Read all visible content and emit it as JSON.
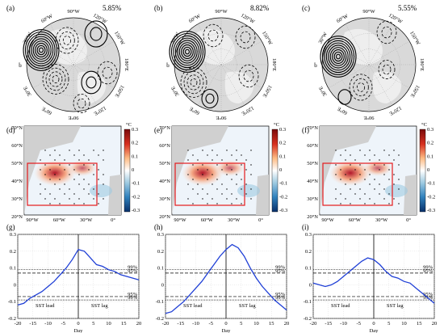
{
  "panels_top": [
    {
      "label": "(a)",
      "percent": "5.85%",
      "lon_labels": [
        "90°W",
        "120°W",
        "150°W",
        "180°E",
        "150°E",
        "120°E",
        "90°E",
        "60°E",
        "30°E",
        "0°",
        "30°W",
        "60°W"
      ]
    },
    {
      "label": "(b)",
      "percent": "8.82%",
      "lon_labels": [
        "90°W",
        "120°W",
        "150°W",
        "180°E",
        "150°E",
        "120°E",
        "90°E",
        "60°E",
        "30°E",
        "0°",
        "30°W",
        "60°W"
      ]
    },
    {
      "label": "(c)",
      "percent": "5.55%",
      "lon_labels": [
        "90°W",
        "120°W",
        "150°W",
        "180°E",
        "150°E",
        "120°E",
        "90°E",
        "60°E",
        "30°E",
        "0°",
        "30°W",
        "60°W"
      ]
    }
  ],
  "panels_mid": [
    {
      "label": "(d)"
    },
    {
      "label": "(e)"
    },
    {
      "label": "(f)"
    }
  ],
  "map_axes": {
    "lat_labels": [
      "70°N",
      "60°N",
      "50°N",
      "40°N",
      "30°N",
      "20°N"
    ],
    "lon_labels": [
      "90°W",
      "60°W",
      "30°W",
      "0°"
    ]
  },
  "colorbar": {
    "unit": "°C",
    "ticks": [
      "0.3",
      "0.2",
      "0.1",
      "0",
      "-0.1",
      "-0.2",
      "-0.3"
    ]
  },
  "chart_data": [
    {
      "type": "line",
      "title": "(g)",
      "xlabel": "Day",
      "ylabel": "",
      "xlim": [
        -20,
        20
      ],
      "ylim": [
        -0.2,
        0.3
      ],
      "xticks": [
        "-20",
        "-15",
        "-10",
        "-5",
        "0",
        "5",
        "10",
        "15",
        "20"
      ],
      "yticks": [
        "-0.2",
        "-0.1",
        "0",
        "0.1",
        "0.2",
        "0.3"
      ],
      "x": [
        -20,
        -18,
        -16,
        -14,
        -12,
        -10,
        -8,
        -6,
        -4,
        -2,
        0,
        2,
        4,
        6,
        8,
        10,
        12,
        14,
        16,
        18,
        20
      ],
      "series": [
        {
          "values": [
            -0.12,
            -0.11,
            -0.08,
            -0.06,
            -0.04,
            -0.01,
            0.02,
            0.06,
            0.1,
            0.15,
            0.21,
            0.2,
            0.16,
            0.12,
            0.11,
            0.09,
            0.08,
            0.06,
            0.05,
            0.04,
            0.03
          ],
          "color": "#1f3fd6"
        }
      ],
      "thresholds": [
        {
          "value": 0.09,
          "label": "99%",
          "style": "dotted"
        },
        {
          "value": 0.07,
          "label": "95%",
          "style": "dashed"
        },
        {
          "value": -0.07,
          "label": "95%",
          "style": "dashed"
        },
        {
          "value": -0.09,
          "label": "99%",
          "style": "dotted"
        }
      ],
      "annotations": [
        "SST lead",
        "SST lag"
      ]
    },
    {
      "type": "line",
      "title": "(h)",
      "xlabel": "Day",
      "ylabel": "",
      "xlim": [
        -20,
        20
      ],
      "ylim": [
        -0.2,
        0.3
      ],
      "xticks": [
        "-20",
        "-15",
        "-10",
        "-5",
        "0",
        "5",
        "10",
        "15",
        "20"
      ],
      "yticks": [
        "-0.2",
        "-0.1",
        "0",
        "0.1",
        "0.2",
        "0.3"
      ],
      "x": [
        -20,
        -18,
        -16,
        -14,
        -12,
        -10,
        -8,
        -6,
        -4,
        -2,
        0,
        2,
        4,
        6,
        8,
        10,
        12,
        14,
        16,
        18,
        20
      ],
      "series": [
        {
          "values": [
            -0.17,
            -0.16,
            -0.13,
            -0.1,
            -0.06,
            -0.02,
            0.02,
            0.07,
            0.12,
            0.17,
            0.21,
            0.24,
            0.22,
            0.17,
            0.1,
            0.04,
            -0.01,
            -0.05,
            -0.09,
            -0.12,
            -0.15
          ],
          "color": "#1f3fd6"
        }
      ],
      "thresholds": [
        {
          "value": 0.09,
          "label": "99%",
          "style": "dotted"
        },
        {
          "value": 0.07,
          "label": "95%",
          "style": "dashed"
        },
        {
          "value": -0.07,
          "label": "95%",
          "style": "dashed"
        },
        {
          "value": -0.09,
          "label": "99%",
          "style": "dotted"
        }
      ],
      "annotations": [
        "SST lead",
        "SST lag"
      ]
    },
    {
      "type": "line",
      "title": "(i)",
      "xlabel": "Day",
      "ylabel": "",
      "xlim": [
        -20,
        20
      ],
      "ylim": [
        -0.2,
        0.3
      ],
      "xticks": [
        "-20",
        "-15",
        "-10",
        "-5",
        "0",
        "5",
        "10",
        "15",
        "20"
      ],
      "yticks": [
        "-0.2",
        "-0.1",
        "0",
        "0.1",
        "0.2",
        "0.3"
      ],
      "x": [
        -20,
        -18,
        -16,
        -14,
        -12,
        -10,
        -8,
        -6,
        -4,
        -2,
        0,
        2,
        4,
        6,
        8,
        10,
        12,
        14,
        16,
        18,
        20
      ],
      "series": [
        {
          "values": [
            0.01,
            0.0,
            -0.01,
            0.0,
            0.02,
            0.05,
            0.08,
            0.11,
            0.14,
            0.16,
            0.15,
            0.12,
            0.08,
            0.05,
            0.04,
            0.02,
            0.01,
            -0.02,
            -0.05,
            -0.08,
            -0.11
          ],
          "color": "#1f3fd6"
        }
      ],
      "thresholds": [
        {
          "value": 0.09,
          "label": "99%",
          "style": "dotted"
        },
        {
          "value": 0.07,
          "label": "95%",
          "style": "dashed"
        },
        {
          "value": -0.07,
          "label": "95%",
          "style": "dashed"
        },
        {
          "value": -0.09,
          "label": "99%",
          "style": "dotted"
        }
      ],
      "annotations": [
        "SST lead",
        "SST lag"
      ]
    }
  ]
}
